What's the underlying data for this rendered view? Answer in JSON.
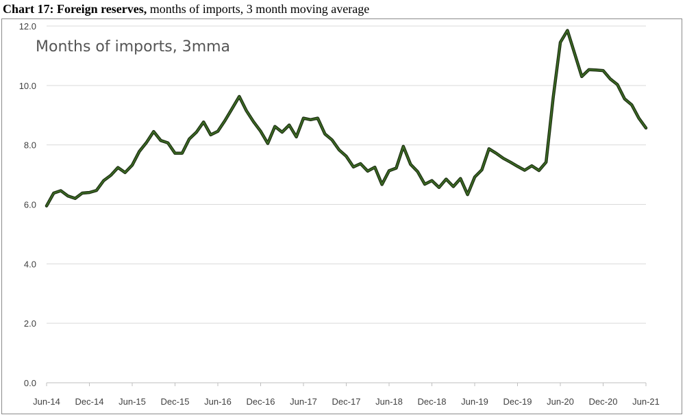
{
  "title": {
    "bold": "Chart 17: Foreign reserves,",
    "rest": " months of imports, 3 month moving average"
  },
  "chart_data": {
    "type": "line",
    "inner_label": "Months of imports, 3mma",
    "ylim": [
      0,
      12
    ],
    "yticks": [
      "0.0",
      "2.0",
      "4.0",
      "6.0",
      "8.0",
      "10.0",
      "12.0"
    ],
    "xtick_labels": [
      "Jun-14",
      "Dec-14",
      "Jun-15",
      "Dec-15",
      "Jun-16",
      "Dec-16",
      "Jun-17",
      "Dec-17",
      "Jun-18",
      "Dec-18",
      "Jun-19",
      "Dec-19",
      "Jun-20",
      "Dec-20",
      "Jun-21"
    ],
    "grid": true,
    "legend": "none",
    "series": [
      {
        "color": "#2d4a1e",
        "x": [
          "Jun-14",
          "Jul-14",
          "Aug-14",
          "Sep-14",
          "Oct-14",
          "Nov-14",
          "Dec-14",
          "Jan-15",
          "Feb-15",
          "Mar-15",
          "Apr-15",
          "May-15",
          "Jun-15",
          "Jul-15",
          "Aug-15",
          "Sep-15",
          "Oct-15",
          "Nov-15",
          "Dec-15",
          "Jan-16",
          "Feb-16",
          "Mar-16",
          "Apr-16",
          "May-16",
          "Jun-16",
          "Jul-16",
          "Aug-16",
          "Sep-16",
          "Oct-16",
          "Nov-16",
          "Dec-16",
          "Jan-17",
          "Feb-17",
          "Mar-17",
          "Apr-17",
          "May-17",
          "Jun-17",
          "Jul-17",
          "Aug-17",
          "Sep-17",
          "Oct-17",
          "Nov-17",
          "Dec-17",
          "Jan-18",
          "Feb-18",
          "Mar-18",
          "Apr-18",
          "May-18",
          "Jun-18",
          "Jul-18",
          "Aug-18",
          "Sep-18",
          "Oct-18",
          "Nov-18",
          "Dec-18",
          "Jan-19",
          "Feb-19",
          "Mar-19",
          "Apr-19",
          "May-19",
          "Jun-19",
          "Jul-19",
          "Aug-19",
          "Sep-19",
          "Oct-19",
          "Nov-19",
          "Dec-19",
          "Jan-20",
          "Feb-20",
          "Mar-20",
          "Apr-20",
          "May-20",
          "Jun-20",
          "Jul-20",
          "Aug-20",
          "Sep-20",
          "Oct-20",
          "Nov-20",
          "Dec-20",
          "Jan-21",
          "Feb-21",
          "Mar-21",
          "Apr-21",
          "May-21",
          "Jun-21"
        ],
        "values": [
          5.95,
          6.38,
          6.46,
          6.28,
          6.2,
          6.38,
          6.4,
          6.47,
          6.8,
          6.98,
          7.24,
          7.07,
          7.32,
          7.78,
          8.08,
          8.45,
          8.15,
          8.07,
          7.72,
          7.72,
          8.2,
          8.43,
          8.77,
          8.34,
          8.46,
          8.82,
          9.22,
          9.63,
          9.15,
          8.78,
          8.46,
          8.05,
          8.62,
          8.43,
          8.67,
          8.27,
          8.9,
          8.85,
          8.9,
          8.37,
          8.17,
          7.83,
          7.62,
          7.26,
          7.37,
          7.12,
          7.25,
          6.67,
          7.13,
          7.22,
          7.95,
          7.35,
          7.1,
          6.68,
          6.8,
          6.57,
          6.85,
          6.6,
          6.87,
          6.33,
          6.92,
          7.16,
          7.87,
          7.72,
          7.55,
          7.42,
          7.28,
          7.15,
          7.3,
          7.14,
          7.42,
          9.6,
          11.45,
          11.85,
          11.08,
          10.3,
          10.53,
          10.52,
          10.5,
          10.22,
          10.03,
          9.55,
          9.35,
          8.9,
          8.57
        ]
      }
    ]
  }
}
